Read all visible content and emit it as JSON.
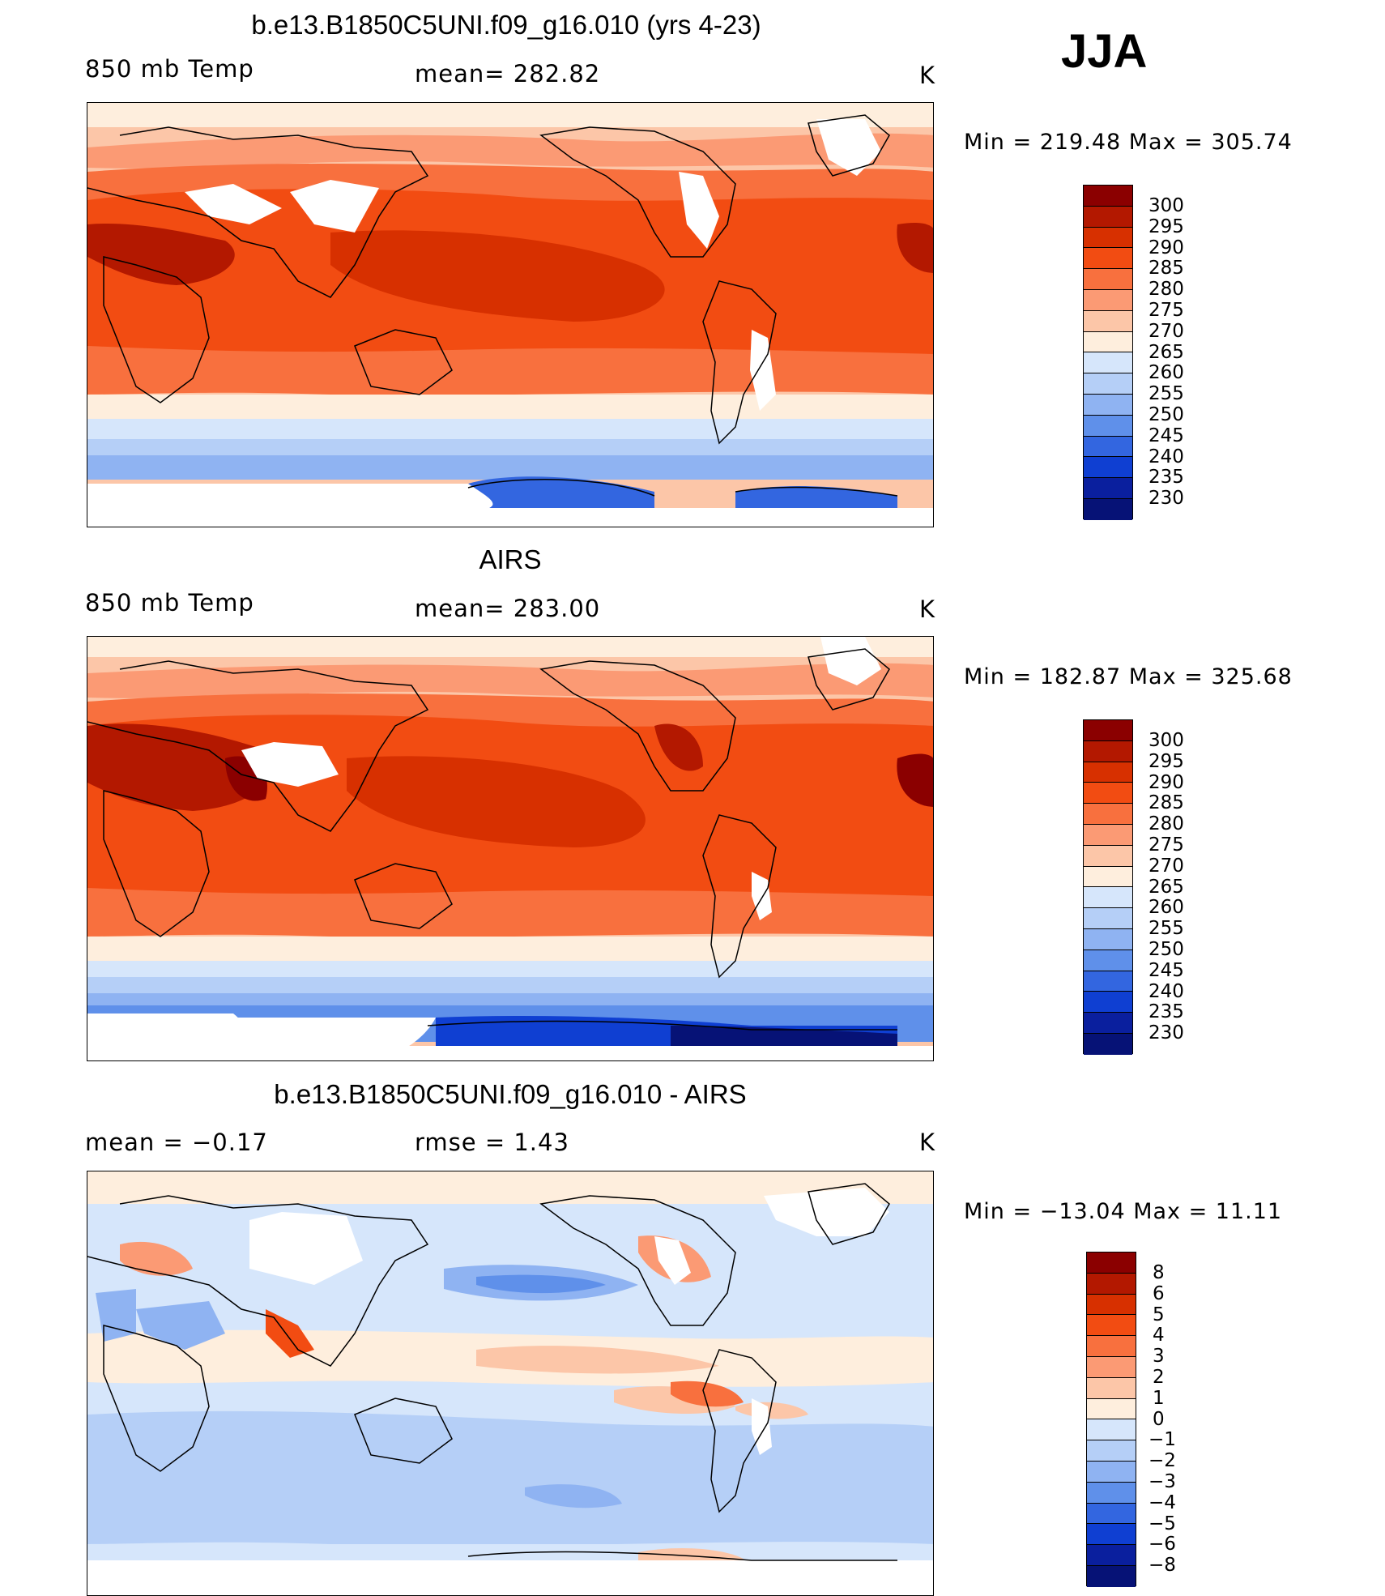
{
  "season": "JJA",
  "panels": [
    {
      "title": "b.e13.B1850C5UNI.f09_g16.010 (yrs 4-23)",
      "left_label": "850 mb Temp",
      "center_label": "mean= 282.82",
      "units": "K",
      "minmax": "Min = 219.48 Max = 305.74"
    },
    {
      "title": "AIRS",
      "left_label": "850 mb Temp",
      "center_label": "mean= 283.00",
      "units": "K",
      "minmax": "Min = 182.87 Max = 325.68"
    },
    {
      "title": "b.e13.B1850C5UNI.f09_g16.010 - AIRS",
      "left_label": "mean = −0.17",
      "center_label": "rmse = 1.43",
      "units": "K",
      "minmax": "Min = −13.04 Max = 11.11"
    }
  ],
  "temp_colorbar": {
    "labels": [
      "300",
      "295",
      "290",
      "285",
      "280",
      "275",
      "270",
      "265",
      "260",
      "255",
      "250",
      "245",
      "240",
      "235",
      "230"
    ],
    "colors": [
      "#8b0000",
      "#b31800",
      "#d73000",
      "#f24c12",
      "#f8703e",
      "#fb9a74",
      "#fcc6a8",
      "#feeedd",
      "#d6e6fb",
      "#b5cff7",
      "#8fb3f2",
      "#5f90ea",
      "#3366e0",
      "#0f3fd2",
      "#0a1f9e",
      "#061276"
    ]
  },
  "diff_colorbar": {
    "labels": [
      "8",
      "6",
      "5",
      "4",
      "3",
      "2",
      "1",
      "0",
      "−1",
      "−2",
      "−3",
      "−4",
      "−5",
      "−6",
      "−8"
    ],
    "colors": [
      "#8b0000",
      "#b31800",
      "#d73000",
      "#f24c12",
      "#f8703e",
      "#fb9a74",
      "#fcc6a8",
      "#feeedd",
      "#d6e6fb",
      "#b5cff7",
      "#8fb3f2",
      "#5f90ea",
      "#3366e0",
      "#0f3fd2",
      "#0a1f9e",
      "#061276"
    ]
  }
}
